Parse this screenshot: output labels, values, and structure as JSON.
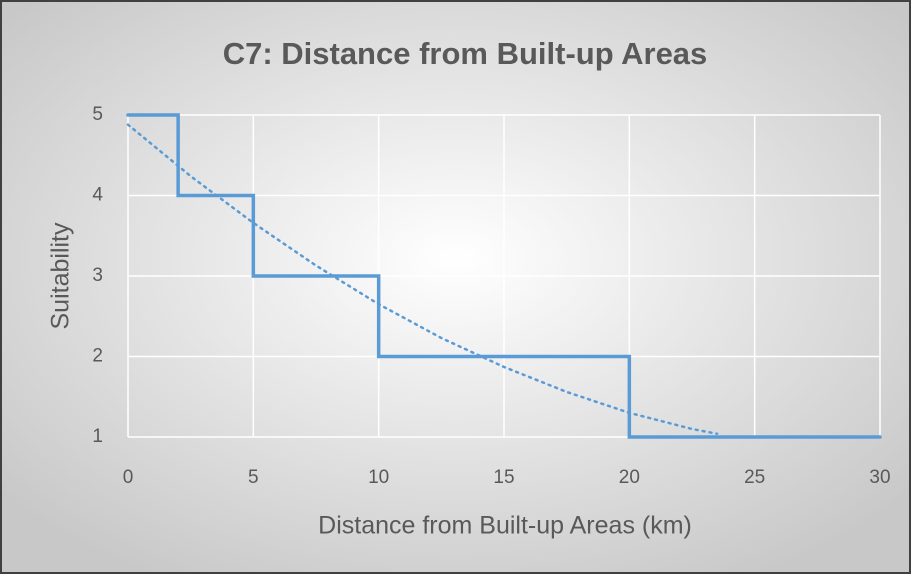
{
  "chart_data": {
    "type": "line",
    "title": "C7: Distance from Built-up Areas",
    "x_label": "Distance from Built-up Areas (km)",
    "y_label": "Suitability",
    "series": [
      {
        "color": "#5b9bd5",
        "style": "solid",
        "x": [
          0,
          2,
          2,
          5,
          5,
          10,
          10,
          20,
          20,
          30
        ],
        "values": [
          5,
          5,
          4,
          4,
          3,
          3,
          2,
          2,
          1,
          1
        ]
      },
      {
        "color": "#5b9bd5",
        "style": "dotted",
        "x": [
          0,
          2.5,
          5,
          7.5,
          10,
          12.5,
          15,
          17.5,
          20,
          22.5,
          23.5
        ],
        "values": [
          4.88,
          4.24,
          3.66,
          3.13,
          2.65,
          2.23,
          1.87,
          1.56,
          1.3,
          1.1,
          1.04
        ]
      }
    ],
    "xlim": [
      0,
      30
    ],
    "xticks": [
      0,
      5,
      10,
      15,
      20,
      25,
      30
    ],
    "ylim": [
      1,
      5
    ],
    "yticks": [
      1,
      2,
      3,
      4,
      5
    ],
    "grid": true
  }
}
